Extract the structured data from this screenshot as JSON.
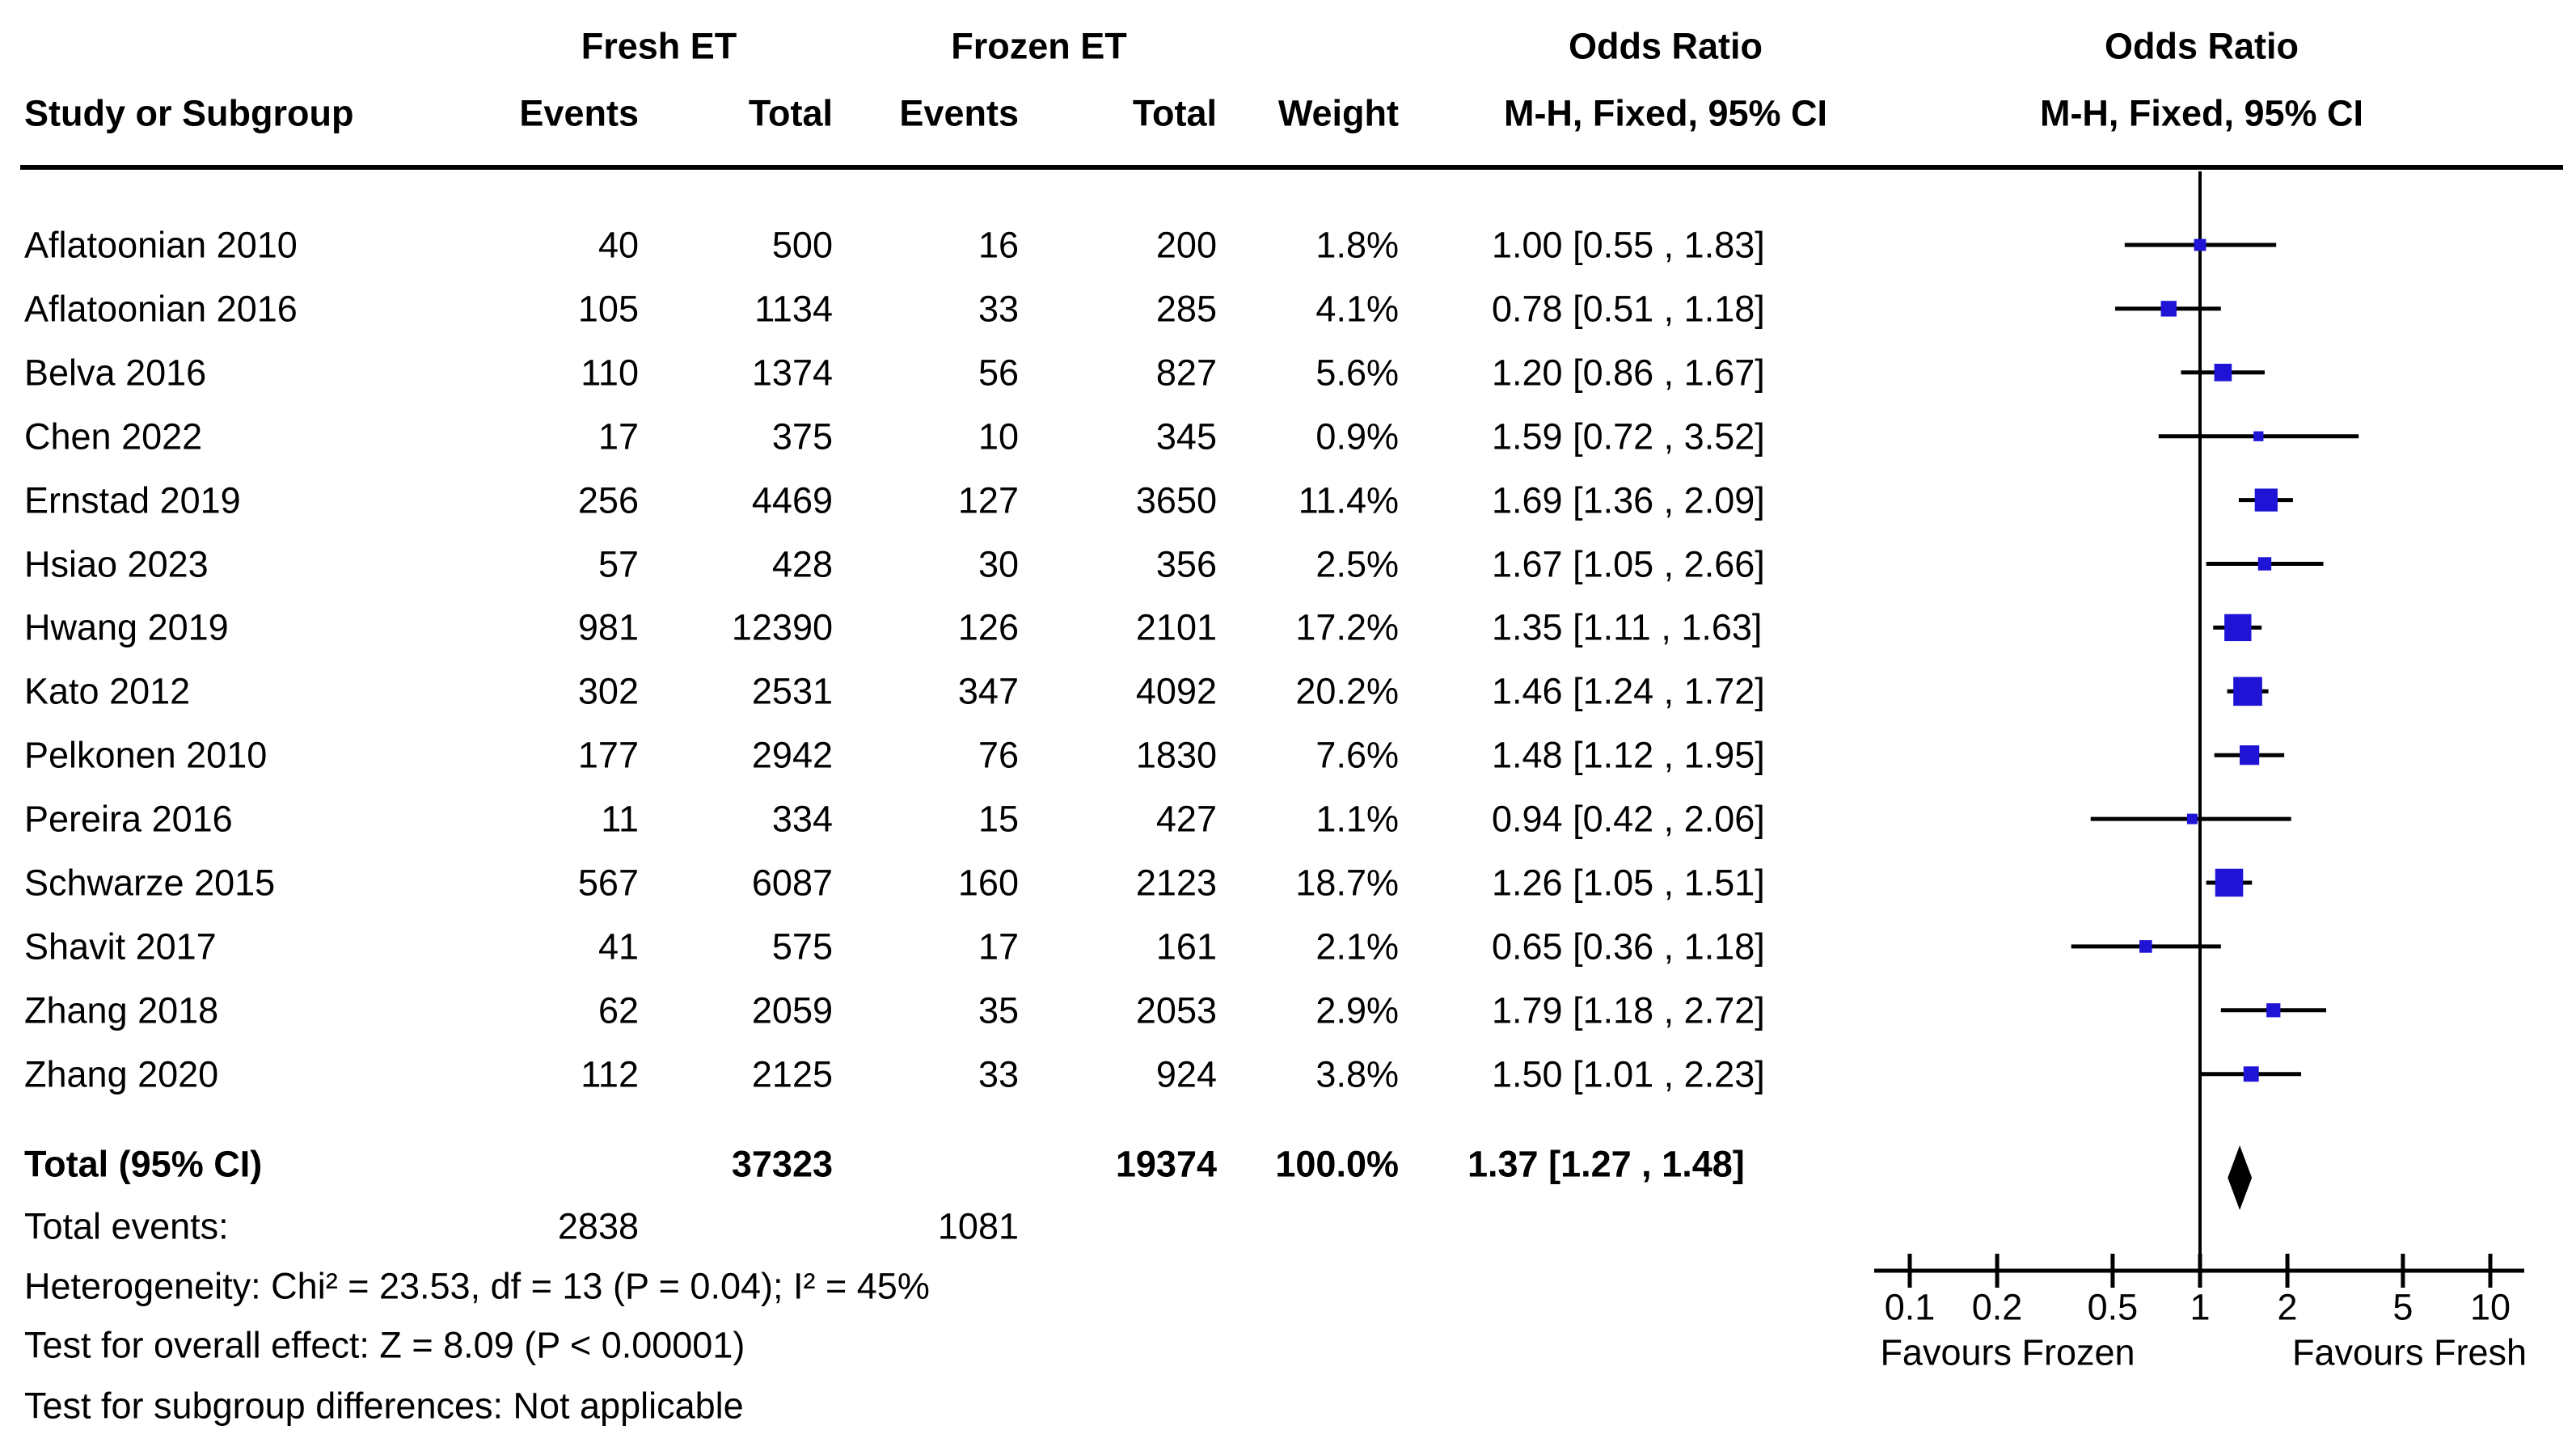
{
  "header": {
    "fresh_group": "Fresh ET",
    "frozen_group": "Frozen ET",
    "or_text_group": "Odds Ratio",
    "or_plot_group": "Odds Ratio",
    "study": "Study or Subgroup",
    "events_fresh": "Events",
    "total_fresh": "Total",
    "events_frozen": "Events",
    "total_frozen": "Total",
    "weight": "Weight",
    "mh_text": "M-H, Fixed, 95% CI",
    "mh_plot": "M-H, Fixed, 95% CI"
  },
  "total_row": {
    "label": "Total (95% CI)",
    "fresh_total": "37323",
    "frozen_total": "19374",
    "weight_label": "100.0%",
    "or_label": "1.37 [1.27 , 1.48]",
    "or": 1.37,
    "ci_low": 1.27,
    "ci_high": 1.48
  },
  "total_events": {
    "label": "Total events:",
    "fresh": "2838",
    "frozen": "1081"
  },
  "footer": {
    "heterogeneity": "Heterogeneity: Chi² = 23.53, df = 13 (P = 0.04); I² = 45%",
    "overall_effect": "Test for overall effect: Z = 8.09 (P < 0.00001)",
    "subgroup": "Test for subgroup differences: Not applicable"
  },
  "colors": {
    "square_blue": "#1f13d6",
    "line_black": "#000000",
    "diamond_black": "#000000"
  },
  "chart_data": {
    "type": "forest",
    "effect_measure": "Odds Ratio, M-H, Fixed, 95% CI",
    "x_scale": "log",
    "x_ticks": [
      0.1,
      0.2,
      0.5,
      1,
      2,
      5,
      10
    ],
    "x_tick_labels": [
      "0.1",
      "0.2",
      "0.5",
      "1",
      "2",
      "5",
      "10"
    ],
    "null_value": 1,
    "favours_left": "Favours Frozen",
    "favours_right": "Favours Fresh",
    "studies": [
      {
        "name": "Aflatoonian 2010",
        "fresh_events": 40,
        "fresh_total": 500,
        "frozen_events": 16,
        "frozen_total": 200,
        "weight_pct": 1.8,
        "weight_label": "1.8%",
        "or": 1.0,
        "ci_low": 0.55,
        "ci_high": 1.83,
        "or_label": "1.00 [0.55 , 1.83]"
      },
      {
        "name": "Aflatoonian 2016",
        "fresh_events": 105,
        "fresh_total": 1134,
        "frozen_events": 33,
        "frozen_total": 285,
        "weight_pct": 4.1,
        "weight_label": "4.1%",
        "or": 0.78,
        "ci_low": 0.51,
        "ci_high": 1.18,
        "or_label": "0.78 [0.51 , 1.18]"
      },
      {
        "name": "Belva 2016",
        "fresh_events": 110,
        "fresh_total": 1374,
        "frozen_events": 56,
        "frozen_total": 827,
        "weight_pct": 5.6,
        "weight_label": "5.6%",
        "or": 1.2,
        "ci_low": 0.86,
        "ci_high": 1.67,
        "or_label": "1.20 [0.86 , 1.67]"
      },
      {
        "name": "Chen 2022",
        "fresh_events": 17,
        "fresh_total": 375,
        "frozen_events": 10,
        "frozen_total": 345,
        "weight_pct": 0.9,
        "weight_label": "0.9%",
        "or": 1.59,
        "ci_low": 0.72,
        "ci_high": 3.52,
        "or_label": "1.59 [0.72 , 3.52]"
      },
      {
        "name": "Ernstad 2019",
        "fresh_events": 256,
        "fresh_total": 4469,
        "frozen_events": 127,
        "frozen_total": 3650,
        "weight_pct": 11.4,
        "weight_label": "11.4%",
        "or": 1.69,
        "ci_low": 1.36,
        "ci_high": 2.09,
        "or_label": "1.69 [1.36 , 2.09]"
      },
      {
        "name": "Hsiao 2023",
        "fresh_events": 57,
        "fresh_total": 428,
        "frozen_events": 30,
        "frozen_total": 356,
        "weight_pct": 2.5,
        "weight_label": "2.5%",
        "or": 1.67,
        "ci_low": 1.05,
        "ci_high": 2.66,
        "or_label": "1.67 [1.05 , 2.66]"
      },
      {
        "name": "Hwang 2019",
        "fresh_events": 981,
        "fresh_total": 12390,
        "frozen_events": 126,
        "frozen_total": 2101,
        "weight_pct": 17.2,
        "weight_label": "17.2%",
        "or": 1.35,
        "ci_low": 1.11,
        "ci_high": 1.63,
        "or_label": "1.35 [1.11 , 1.63]"
      },
      {
        "name": "Kato 2012",
        "fresh_events": 302,
        "fresh_total": 2531,
        "frozen_events": 347,
        "frozen_total": 4092,
        "weight_pct": 20.2,
        "weight_label": "20.2%",
        "or": 1.46,
        "ci_low": 1.24,
        "ci_high": 1.72,
        "or_label": "1.46 [1.24 , 1.72]"
      },
      {
        "name": "Pelkonen 2010",
        "fresh_events": 177,
        "fresh_total": 2942,
        "frozen_events": 76,
        "frozen_total": 1830,
        "weight_pct": 7.6,
        "weight_label": "7.6%",
        "or": 1.48,
        "ci_low": 1.12,
        "ci_high": 1.95,
        "or_label": "1.48 [1.12 , 1.95]"
      },
      {
        "name": "Pereira 2016",
        "fresh_events": 11,
        "fresh_total": 334,
        "frozen_events": 15,
        "frozen_total": 427,
        "weight_pct": 1.1,
        "weight_label": "1.1%",
        "or": 0.94,
        "ci_low": 0.42,
        "ci_high": 2.06,
        "or_label": "0.94 [0.42 , 2.06]"
      },
      {
        "name": "Schwarze 2015",
        "fresh_events": 567,
        "fresh_total": 6087,
        "frozen_events": 160,
        "frozen_total": 2123,
        "weight_pct": 18.7,
        "weight_label": "18.7%",
        "or": 1.26,
        "ci_low": 1.05,
        "ci_high": 1.51,
        "or_label": "1.26 [1.05 , 1.51]"
      },
      {
        "name": "Shavit 2017",
        "fresh_events": 41,
        "fresh_total": 575,
        "frozen_events": 17,
        "frozen_total": 161,
        "weight_pct": 2.1,
        "weight_label": "2.1%",
        "or": 0.65,
        "ci_low": 0.36,
        "ci_high": 1.18,
        "or_label": "0.65 [0.36 , 1.18]"
      },
      {
        "name": "Zhang 2018",
        "fresh_events": 62,
        "fresh_total": 2059,
        "frozen_events": 35,
        "frozen_total": 2053,
        "weight_pct": 2.9,
        "weight_label": "2.9%",
        "or": 1.79,
        "ci_low": 1.18,
        "ci_high": 2.72,
        "or_label": "1.79 [1.18 , 2.72]"
      },
      {
        "name": "Zhang 2020",
        "fresh_events": 112,
        "fresh_total": 2125,
        "frozen_events": 33,
        "frozen_total": 924,
        "weight_pct": 3.8,
        "weight_label": "3.8%",
        "or": 1.5,
        "ci_low": 1.01,
        "ci_high": 2.23,
        "or_label": "1.50 [1.01 , 2.23]"
      }
    ],
    "summary": {
      "label": "Total (95% CI)",
      "or": 1.37,
      "ci_low": 1.27,
      "ci_high": 1.48,
      "weight_pct": 100.0,
      "fresh_total": 37323,
      "frozen_total": 19374,
      "fresh_events": 2838,
      "frozen_events": 1081
    }
  }
}
